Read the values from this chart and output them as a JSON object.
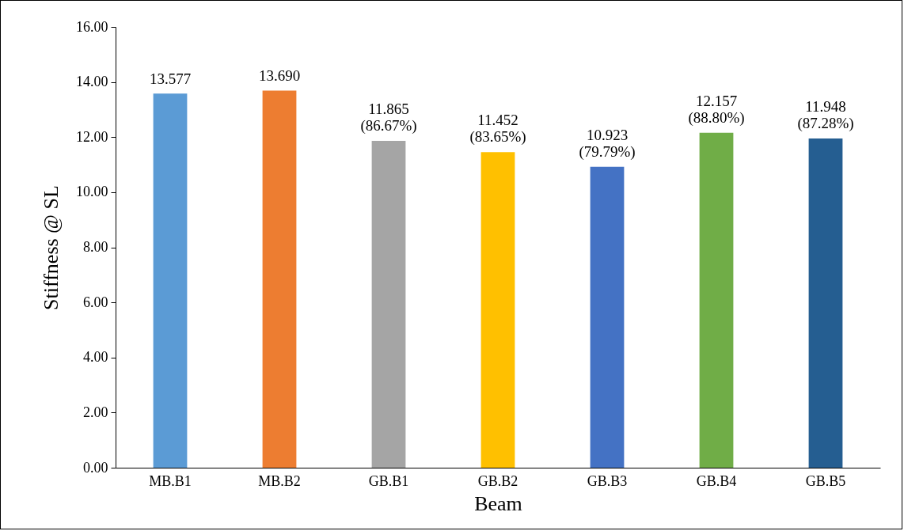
{
  "chart_data": {
    "type": "bar",
    "xlabel": "Beam",
    "ylabel": "Stiffness @ SL",
    "categories": [
      "MB.B1",
      "MB.B2",
      "GB.B1",
      "GB.B2",
      "GB.B3",
      "GB.B4",
      "GB.B5"
    ],
    "values": [
      13.577,
      13.69,
      11.865,
      11.452,
      10.923,
      12.157,
      11.948
    ],
    "colors": [
      "#5b9bd5",
      "#ed7d31",
      "#a5a5a5",
      "#ffc000",
      "#4472c4",
      "#70ad47",
      "#255e91"
    ],
    "value_labels": [
      "13.577",
      "13.690",
      "11.865\n(86.67%)",
      "11.452\n(83.65%)",
      "10.923\n(79.79%)",
      "12.157\n(88.80%)",
      "11.948\n(87.28%)"
    ],
    "ylim": [
      0,
      16
    ],
    "yticks": [
      {
        "value": 0,
        "label": "0.00"
      },
      {
        "value": 2,
        "label": "2.00"
      },
      {
        "value": 4,
        "label": "4.00"
      },
      {
        "value": 6,
        "label": "6.00"
      },
      {
        "value": 8,
        "label": "8.00"
      },
      {
        "value": 10,
        "label": "10.00"
      },
      {
        "value": 12,
        "label": "12.00"
      },
      {
        "value": 14,
        "label": "14.00"
      },
      {
        "value": 16,
        "label": "16.00"
      }
    ],
    "grid": false
  }
}
